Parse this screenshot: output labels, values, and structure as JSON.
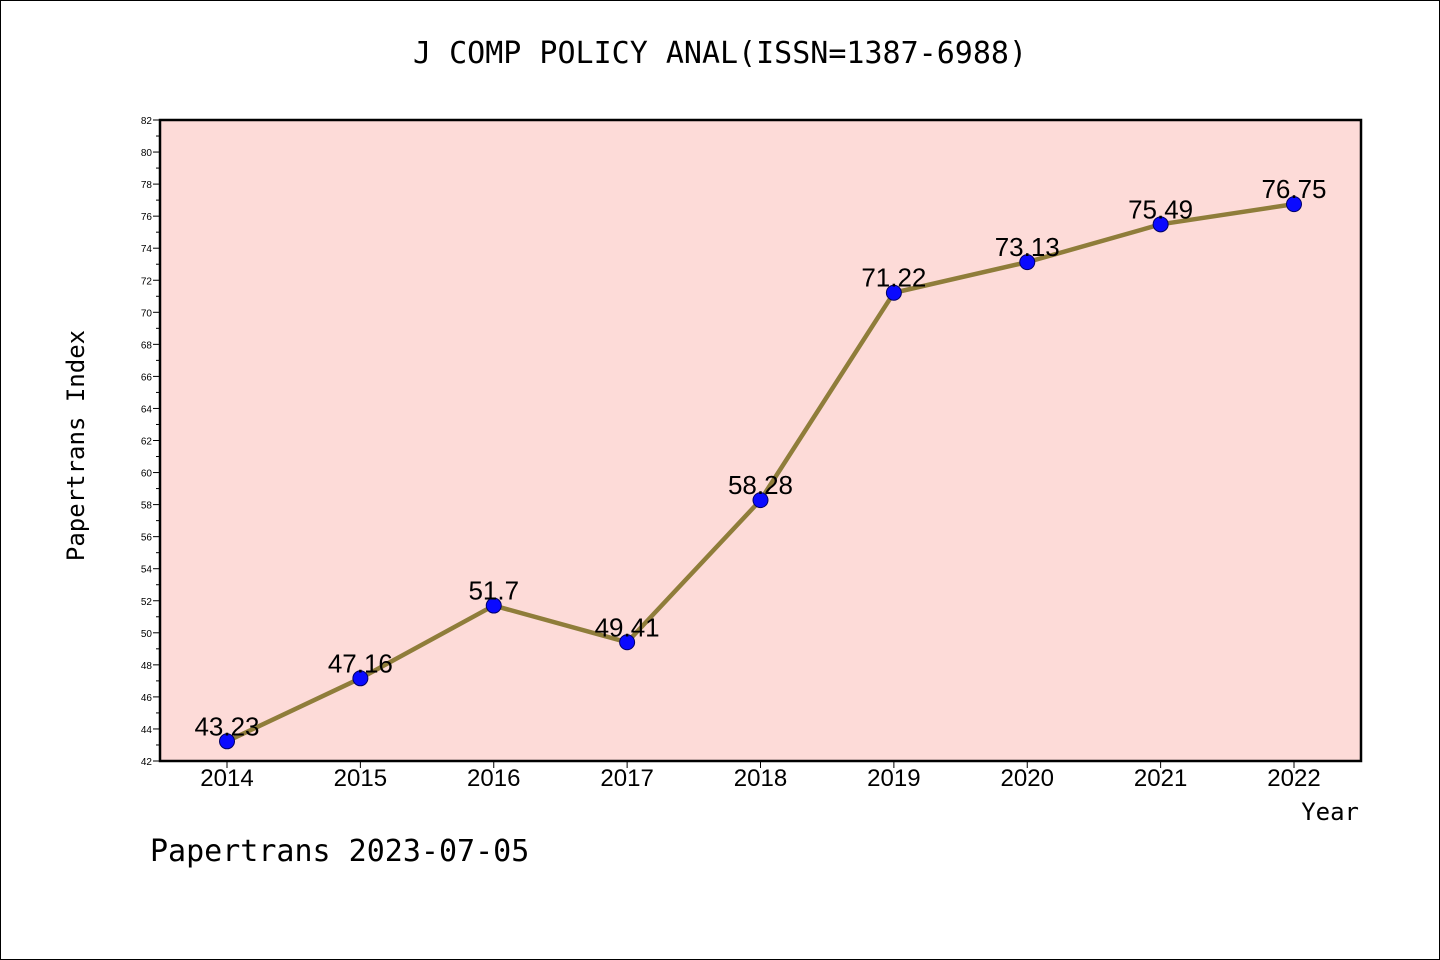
{
  "chart_data": {
    "type": "line",
    "title": "J COMP POLICY ANAL(ISSN=1387-6988)",
    "xlabel": "Year",
    "ylabel": "Papertrans Index",
    "x": [
      "2014",
      "2015",
      "2016",
      "2017",
      "2018",
      "2019",
      "2020",
      "2021",
      "2022"
    ],
    "y": [
      43.23,
      47.16,
      51.7,
      49.41,
      58.28,
      71.22,
      73.13,
      75.49,
      76.75
    ],
    "data_labels": [
      "43.23",
      "47.16",
      "51.7",
      "49.41",
      "58.28",
      "71.22",
      "73.13",
      "75.49",
      "76.75"
    ],
    "yticks": [
      42,
      44,
      46,
      48,
      50,
      52,
      54,
      56,
      58,
      60,
      62,
      64,
      66,
      68,
      70,
      72,
      74,
      76,
      78,
      80,
      82
    ],
    "ylim": [
      42,
      82
    ],
    "grid": false,
    "legend": "none",
    "colors": {
      "plot_background": "#fddbd8",
      "line": "#8f7d3a",
      "marker": "#0a0aff"
    }
  },
  "footer": "Papertrans 2023-07-05"
}
